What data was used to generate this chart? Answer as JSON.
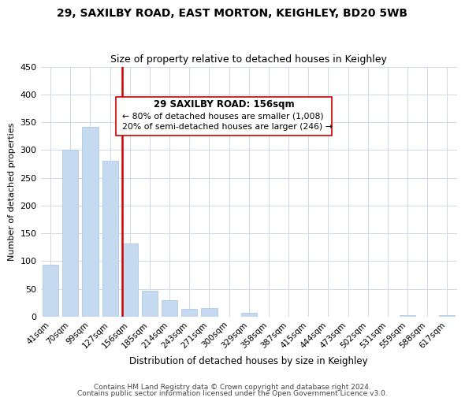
{
  "title1": "29, SAXILBY ROAD, EAST MORTON, KEIGHLEY, BD20 5WB",
  "title2": "Size of property relative to detached houses in Keighley",
  "xlabel": "Distribution of detached houses by size in Keighley",
  "ylabel": "Number of detached properties",
  "bar_labels": [
    "41sqm",
    "70sqm",
    "99sqm",
    "127sqm",
    "156sqm",
    "185sqm",
    "214sqm",
    "243sqm",
    "271sqm",
    "300sqm",
    "329sqm",
    "358sqm",
    "387sqm",
    "415sqm",
    "444sqm",
    "473sqm",
    "502sqm",
    "531sqm",
    "559sqm",
    "588sqm",
    "617sqm"
  ],
  "bar_values": [
    93,
    301,
    341,
    280,
    132,
    47,
    30,
    14,
    15,
    0,
    7,
    0,
    0,
    0,
    0,
    0,
    0,
    0,
    3,
    0,
    3
  ],
  "bar_color": "#c5d9f0",
  "bar_edge_color": "#a8c4e0",
  "highlight_color": "#cc0000",
  "ylim": [
    0,
    450
  ],
  "yticks": [
    0,
    50,
    100,
    150,
    200,
    250,
    300,
    350,
    400,
    450
  ],
  "annotation_title": "29 SAXILBY ROAD: 156sqm",
  "annotation_line1": "← 80% of detached houses are smaller (1,008)",
  "annotation_line2": "20% of semi-detached houses are larger (246) →",
  "footnote1": "Contains HM Land Registry data © Crown copyright and database right 2024.",
  "footnote2": "Contains public sector information licensed under the Open Government Licence v3.0.",
  "grid_color": "#d0d8e8",
  "highlight_bar_idx": 4
}
